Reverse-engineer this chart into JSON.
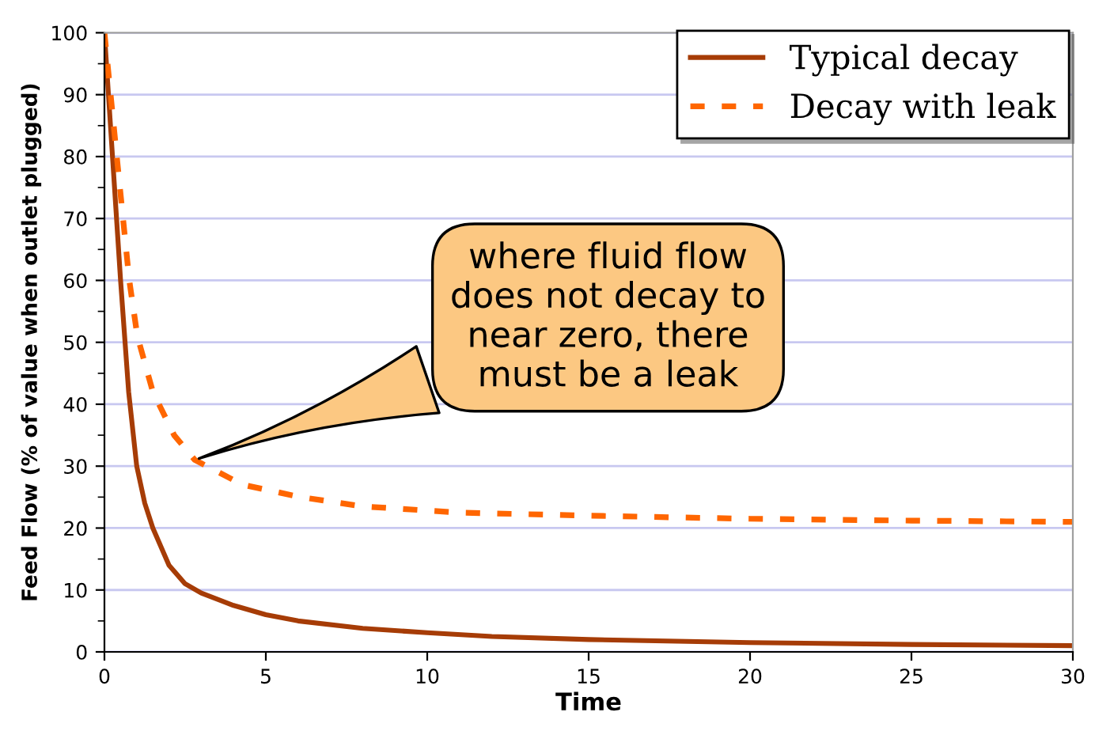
{
  "chart_data": {
    "type": "line",
    "xlabel": "Time",
    "ylabel": "Feed Flow (% of value when outlet plugged)",
    "xlim": [
      0,
      30
    ],
    "xticks": [
      0,
      5,
      10,
      15,
      20,
      25,
      30
    ],
    "ylim": [
      0,
      100
    ],
    "yticks": [
      0,
      10,
      20,
      30,
      40,
      50,
      60,
      70,
      80,
      90,
      100
    ],
    "grid": "y",
    "legend": "top right",
    "series": [
      {
        "name": "Typical decay",
        "color": "#a63c06",
        "line_style": "solid",
        "x": [
          0,
          0.25,
          0.5,
          0.75,
          1.0,
          1.25,
          1.5,
          2,
          2.5,
          3,
          4,
          5,
          6,
          8,
          10,
          12,
          15,
          20,
          25,
          30
        ],
        "values": [
          100,
          80,
          60,
          42,
          30,
          24,
          20,
          14,
          11,
          9.5,
          7.5,
          6,
          5,
          3.8,
          3.1,
          2.5,
          2,
          1.5,
          1.2,
          1.0
        ]
      },
      {
        "name": "Decay with leak",
        "color": "#ff6600",
        "line_style": "dashed",
        "x": [
          0,
          0.44,
          0.77,
          1.02,
          1.5,
          2.16,
          2.8,
          4.28,
          6.08,
          8,
          11,
          15,
          20,
          25,
          30
        ],
        "values": [
          100,
          77,
          60,
          51,
          42,
          35,
          31,
          27,
          25,
          23.5,
          22.5,
          22,
          21.5,
          21.2,
          21
        ]
      }
    ],
    "annotations": [
      {
        "text": "where fluid flow\ndoes not decay to\nnear zero, there\nmust be a leak",
        "x": 2.8,
        "y": 31
      }
    ]
  }
}
